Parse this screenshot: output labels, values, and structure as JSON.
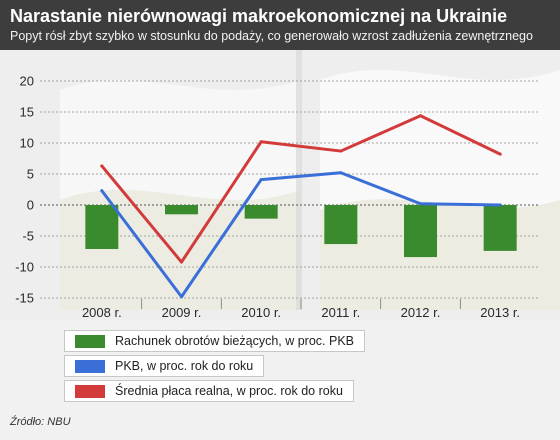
{
  "header": {
    "title": "Narastanie nierównowagi makroekonomicznej na Ukrainie",
    "subtitle": "Popyt rósł zbyt szybko w stosunku do podaży, co generowało wzrost zadłużenia zewnętrznego"
  },
  "source": "Źródło: NBU",
  "colors": {
    "bar": "#3a8a2e",
    "pkb": "#3a6fd8",
    "wage": "#d33b3b",
    "header_bg": "#3d3d3d"
  },
  "chart_data": {
    "type": "bar",
    "categories": [
      "2008 r.",
      "2009 r.",
      "2010 r.",
      "2011 r.",
      "2012 r.",
      "2013 r."
    ],
    "ylim": [
      -15,
      20
    ],
    "yticks": [
      "20",
      "15",
      "10",
      "5",
      "0",
      "-5",
      "-10",
      "-15"
    ],
    "ytick_values": [
      20,
      15,
      10,
      5,
      0,
      -5,
      -10,
      -15
    ],
    "grid": true,
    "legend_position": "bottom-left",
    "series": [
      {
        "name": "Rachunek obrotów bieżących, w proc. PKB",
        "type": "bar",
        "values": [
          -7.1,
          -1.5,
          -2.2,
          -6.3,
          -8.4,
          -7.4
        ]
      },
      {
        "name": "PKB, w proc. rok do roku",
        "type": "line",
        "values": [
          2.3,
          -14.8,
          4.1,
          5.2,
          0.2,
          0.0
        ]
      },
      {
        "name": "Średnia płaca realna, w proc. rok do roku",
        "type": "line",
        "values": [
          6.3,
          -9.2,
          10.2,
          8.7,
          14.4,
          8.2
        ]
      }
    ]
  }
}
